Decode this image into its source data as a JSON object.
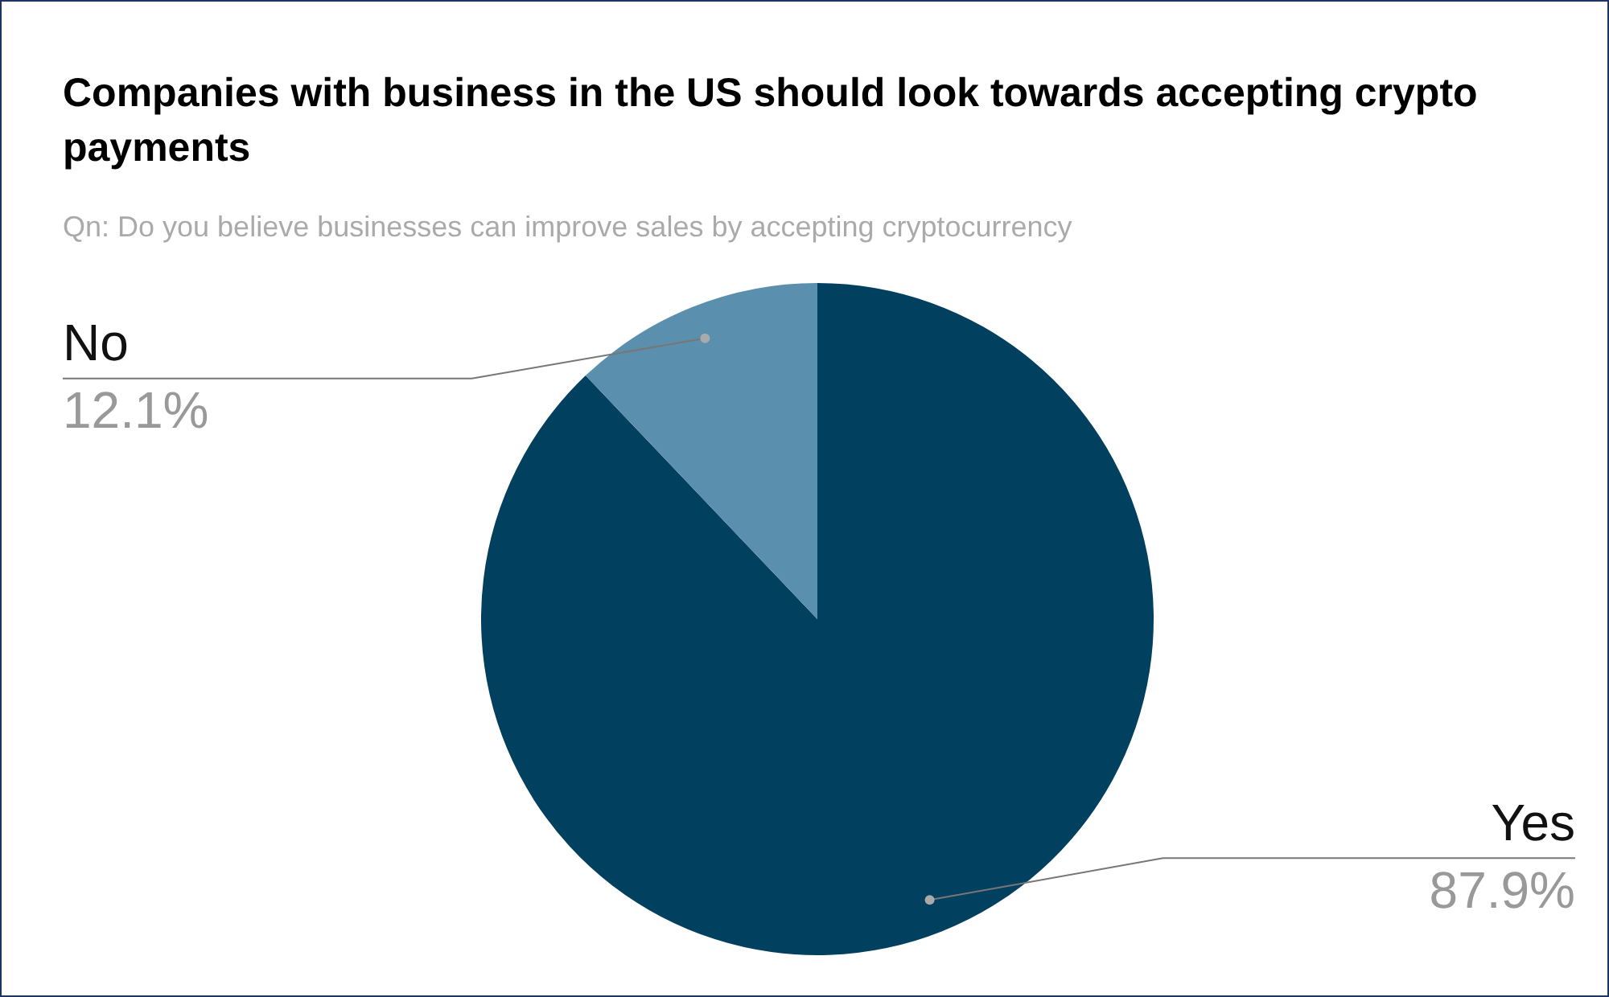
{
  "chart_data": {
    "type": "pie",
    "title": "Companies with business in the US should look towards accepting crypto payments",
    "subtitle": "Qn: Do you believe businesses can improve sales by accepting cryptocurrency",
    "categories": [
      "Yes",
      "No"
    ],
    "values": [
      87.9,
      12.1
    ],
    "colors": [
      "#02405f",
      "#5a8fad"
    ],
    "value_labels": [
      "87.9%",
      "12.1%"
    ]
  }
}
